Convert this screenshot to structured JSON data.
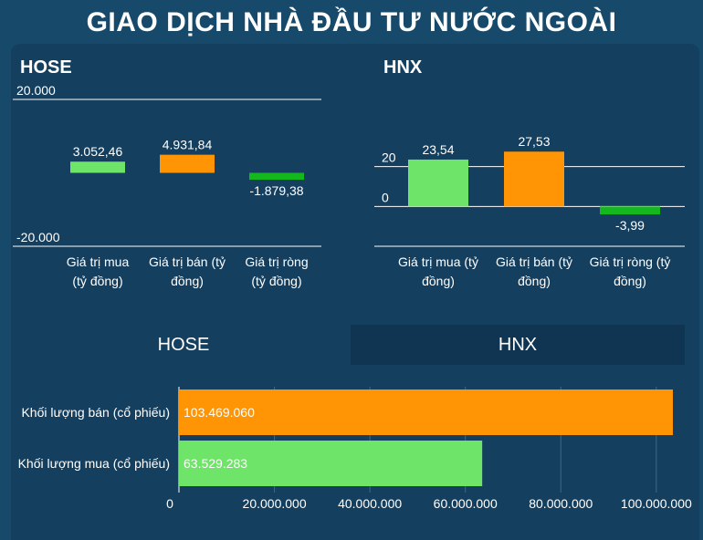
{
  "page": {
    "title": "GIAO DỊCH NHÀ ĐẦU TƯ NƯỚC NGOÀI",
    "tabs": [
      {
        "label": "HOSE",
        "active": true
      },
      {
        "label": "HNX",
        "active": false
      }
    ]
  },
  "colors": {
    "buy": "#6ee468",
    "sell": "#ff9505",
    "net": "#14b81e",
    "axis": "#ffffff",
    "grid": "#3e6a8a"
  },
  "chart_data": [
    {
      "type": "bar",
      "title": "HOSE",
      "categories": [
        "Giá trị mua (tỷ đồng)",
        "Giá trị bán (tỷ đồng)",
        "Giá trị ròng (tỷ đồng)"
      ],
      "category_lines": [
        [
          "Giá trị mua",
          "(tỷ đồng)"
        ],
        [
          "Giá trị bán (tỷ",
          "đồng)"
        ],
        [
          "Giá trị ròng",
          "(tỷ đồng)"
        ]
      ],
      "values": [
        3052.46,
        4931.84,
        -1879.38
      ],
      "value_labels": [
        "3.052,46",
        "4.931,84",
        "-1.879,38"
      ],
      "ylim": [
        -20000,
        20000
      ],
      "yticks": [
        {
          "value": 20000,
          "label": "20.000"
        },
        {
          "value": -20000,
          "label": "-20.000"
        }
      ]
    },
    {
      "type": "bar",
      "title": "HNX",
      "categories": [
        "Giá trị mua (tỷ đồng)",
        "Giá trị bán (tỷ đồng)",
        "Giá trị ròng (tỷ đồng)"
      ],
      "category_lines": [
        [
          "Giá trị mua (tỷ",
          "đồng)"
        ],
        [
          "Giá trị bán (tỷ",
          "đồng)"
        ],
        [
          "Giá trị ròng (tỷ",
          "đồng)"
        ]
      ],
      "values": [
        23.54,
        27.53,
        -3.99
      ],
      "value_labels": [
        "23,54",
        "27,53",
        "-3,99"
      ],
      "ylim": [
        -20,
        40
      ],
      "yticks": [
        {
          "value": 20,
          "label": "20"
        },
        {
          "value": 0,
          "label": "0"
        }
      ]
    },
    {
      "type": "bar",
      "orientation": "horizontal",
      "categories": [
        "Khối lượng bán (cổ phiếu)",
        "Khối lượng mua (cổ phiếu)"
      ],
      "values": [
        103469060,
        63529283
      ],
      "value_labels": [
        "103.469.060",
        "63.529.283"
      ],
      "xlim": [
        0,
        105000000
      ],
      "xticks": [
        {
          "value": 0,
          "label": "0"
        },
        {
          "value": 20000000,
          "label": "20.000.000"
        },
        {
          "value": 40000000,
          "label": "40.000.000"
        },
        {
          "value": 60000000,
          "label": "60.000.000"
        },
        {
          "value": 80000000,
          "label": "80.000.000"
        },
        {
          "value": 100000000,
          "label": "100.000.000"
        }
      ]
    }
  ]
}
